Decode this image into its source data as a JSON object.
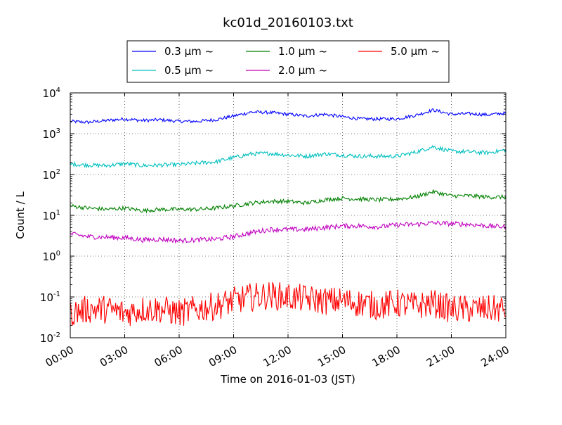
{
  "chart_data": {
    "type": "line",
    "title": "kc01d_20160103.txt",
    "xlabel": "Time on 2016-01-03 (JST)",
    "ylabel": "Count / L",
    "y_scale": "log",
    "ylim": [
      0.01,
      10000
    ],
    "xlim": [
      "00:00",
      "24:00"
    ],
    "grid": true,
    "legend_placement": "top-center",
    "x_ticks": [
      "00:00",
      "03:00",
      "06:00",
      "09:00",
      "12:00",
      "15:00",
      "18:00",
      "21:00",
      "24:00"
    ],
    "y_ticks": [
      {
        "value": 0.01,
        "base": "10",
        "exp": "-2"
      },
      {
        "value": 0.1,
        "base": "10",
        "exp": "-1"
      },
      {
        "value": 1,
        "base": "10",
        "exp": "0"
      },
      {
        "value": 10,
        "base": "10",
        "exp": "1"
      },
      {
        "value": 100,
        "base": "10",
        "exp": "2"
      },
      {
        "value": 1000,
        "base": "10",
        "exp": "3"
      },
      {
        "value": 10000,
        "base": "10",
        "exp": "4"
      }
    ],
    "x_hours": [
      0,
      1,
      2,
      3,
      4,
      5,
      6,
      7,
      8,
      9,
      10,
      11,
      12,
      13,
      14,
      15,
      16,
      17,
      18,
      19,
      20,
      21,
      22,
      23,
      24
    ],
    "series": [
      {
        "name": "0.3 μm ~",
        "color": "#0000ff",
        "noise": 0.04,
        "values": [
          2000,
          1900,
          2100,
          2300,
          2100,
          2200,
          2000,
          2000,
          2200,
          2700,
          3400,
          3300,
          3000,
          2700,
          3000,
          2600,
          2300,
          2300,
          2300,
          2800,
          3800,
          3000,
          3100,
          2900,
          3200
        ]
      },
      {
        "name": "0.5 μm ~",
        "color": "#00bfbf",
        "noise": 0.05,
        "values": [
          180,
          170,
          165,
          185,
          165,
          170,
          175,
          190,
          205,
          260,
          320,
          330,
          300,
          280,
          320,
          300,
          280,
          280,
          280,
          350,
          480,
          370,
          360,
          340,
          400
        ]
      },
      {
        "name": "1.0 μm ~",
        "color": "#008000",
        "noise": 0.05,
        "values": [
          17,
          15,
          14,
          15,
          13,
          14,
          14,
          14,
          15,
          17,
          20,
          22,
          22,
          20,
          24,
          26,
          25,
          24,
          25,
          28,
          38,
          30,
          30,
          28,
          28
        ]
      },
      {
        "name": "2.0 μm ~",
        "color": "#bf00bf",
        "noise": 0.06,
        "values": [
          3.5,
          3.0,
          2.9,
          2.8,
          2.5,
          2.6,
          2.4,
          2.5,
          2.6,
          3.0,
          3.8,
          4.5,
          4.5,
          4.5,
          5.0,
          5.5,
          5.5,
          5.2,
          5.8,
          6.0,
          6.5,
          6.2,
          6.0,
          5.5,
          5.2
        ]
      },
      {
        "name": "5.0 μm ~",
        "color": "#ff0000",
        "noise": 0.35,
        "values": [
          0.04,
          0.05,
          0.05,
          0.04,
          0.05,
          0.05,
          0.04,
          0.05,
          0.06,
          0.08,
          0.1,
          0.11,
          0.1,
          0.09,
          0.08,
          0.08,
          0.07,
          0.06,
          0.07,
          0.06,
          0.07,
          0.05,
          0.05,
          0.05,
          0.05
        ]
      }
    ]
  }
}
